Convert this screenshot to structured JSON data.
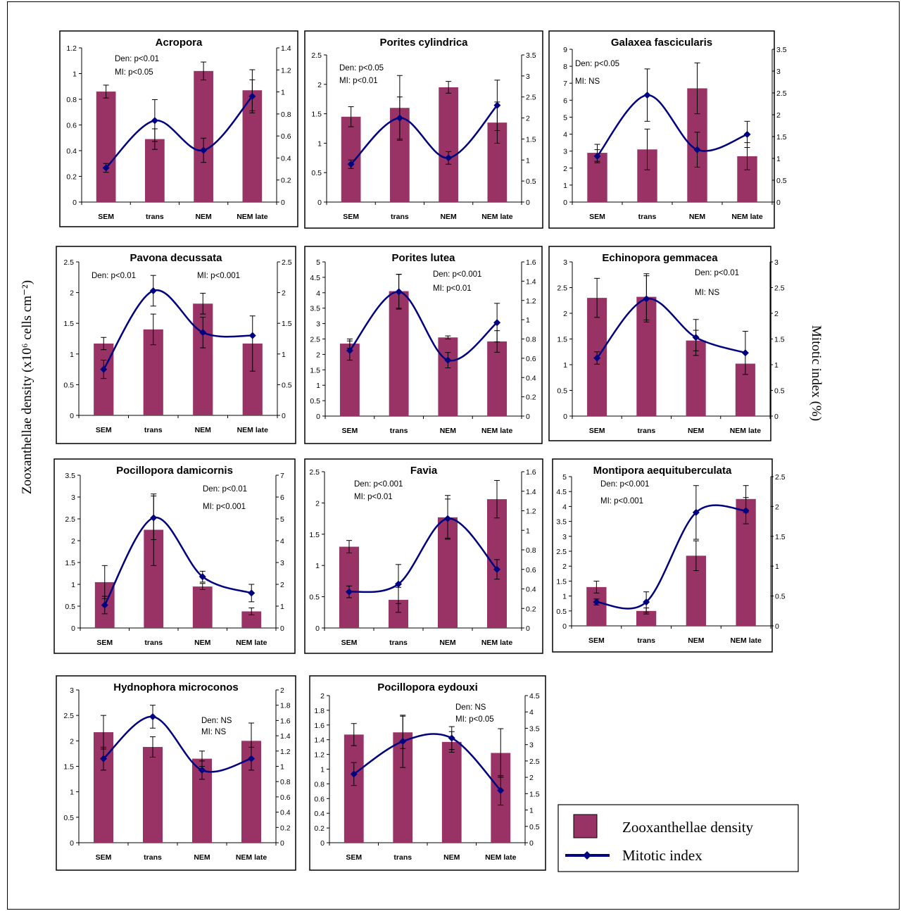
{
  "figure": {
    "left_axis_label": "Zooxanthellae density (x10⁶ cells cm⁻²)",
    "right_axis_label": "Mitotic index (%)",
    "legend": {
      "density_label": "Zooxanthellae density",
      "mitotic_label": "Mitotic index",
      "density_color": "#993366",
      "mitotic_color": "#000080"
    }
  },
  "chart_data": [
    {
      "type": "bar",
      "title": "Acropora",
      "categories": [
        "SEM",
        "trans",
        "NEM",
        "NEM late"
      ],
      "annotations": [
        "Den: p<0.01",
        "MI: p<0.05"
      ],
      "left_axis": {
        "min": 0,
        "max": 1.2,
        "step": 0.2,
        "ticks": [
          "0",
          "0.2",
          "0.4",
          "0.6",
          "0.8",
          "1",
          "1.2"
        ]
      },
      "right_axis": {
        "min": 0,
        "max": 1.4,
        "step": 0.2,
        "ticks": [
          "0",
          "0.2",
          "0.4",
          "0.6",
          "0.8",
          "1",
          "1.2",
          "1.4"
        ]
      },
      "series": [
        {
          "name": "Zooxanthellae density",
          "axis": "left",
          "values": [
            0.86,
            0.49,
            1.02,
            0.87
          ],
          "error": [
            0.05,
            0.08,
            0.07,
            0.16
          ]
        },
        {
          "name": "Mitotic index",
          "axis": "right",
          "values": [
            0.31,
            0.74,
            0.47,
            0.96
          ],
          "error": [
            0.04,
            0.19,
            0.11,
            0.15
          ]
        }
      ]
    },
    {
      "type": "bar",
      "title": "Porites cylindrica",
      "categories": [
        "SEM",
        "trans",
        "NEM",
        "NEM late"
      ],
      "annotations": [
        "Den: p<0.05",
        "MI: p<0.01"
      ],
      "left_axis": {
        "min": 0,
        "max": 2.5,
        "step": 0.5,
        "ticks": [
          "0",
          "0.5",
          "1",
          "1.5",
          "2",
          "2.5"
        ]
      },
      "right_axis": {
        "min": 0,
        "max": 3.5,
        "step": 0.5,
        "ticks": [
          "0",
          "0.5",
          "1",
          "1.5",
          "2",
          "2.5",
          "3",
          "3.5"
        ]
      },
      "series": [
        {
          "name": "Zooxanthellae density",
          "axis": "left",
          "values": [
            1.45,
            1.6,
            1.95,
            1.35
          ],
          "error": [
            0.17,
            0.55,
            0.1,
            0.35
          ]
        },
        {
          "name": "Mitotic index",
          "axis": "right",
          "values": [
            0.9,
            2.0,
            1.05,
            2.3
          ],
          "error": [
            0.1,
            0.5,
            0.15,
            0.6
          ]
        }
      ]
    },
    {
      "type": "bar",
      "title": "Galaxea fascicularis",
      "categories": [
        "SEM",
        "trans",
        "NEM",
        "NEM late"
      ],
      "annotations": [
        "Den: p<0.05",
        "MI: NS"
      ],
      "left_axis": {
        "min": 0,
        "max": 9,
        "step": 1,
        "ticks": [
          "0",
          "1",
          "2",
          "3",
          "4",
          "5",
          "6",
          "7",
          "8",
          "9"
        ]
      },
      "right_axis": {
        "min": 0,
        "max": 3.5,
        "step": 0.5,
        "ticks": [
          "0",
          "0.5",
          "1",
          "1.5",
          "2",
          "2.5",
          "3",
          "3.5"
        ]
      },
      "series": [
        {
          "name": "Zooxanthellae density",
          "axis": "left",
          "values": [
            2.9,
            3.1,
            6.7,
            2.7
          ],
          "error": [
            0.5,
            1.2,
            1.5,
            0.8
          ]
        },
        {
          "name": "Mitotic index",
          "axis": "right",
          "values": [
            1.05,
            2.45,
            1.2,
            1.55
          ],
          "error": [
            0.15,
            0.6,
            0.4,
            0.3
          ]
        }
      ]
    },
    {
      "type": "bar",
      "title": "Pavona decussata",
      "categories": [
        "SEM",
        "trans",
        "NEM",
        "NEM late"
      ],
      "annotations": [
        "Den: p<0.01",
        "MI: p<0.001"
      ],
      "left_axis": {
        "min": 0,
        "max": 2.5,
        "step": 0.5,
        "ticks": [
          "0",
          "0.5",
          "1",
          "1.5",
          "2",
          "2.5"
        ]
      },
      "right_axis": {
        "min": 0,
        "max": 2.5,
        "step": 0.5,
        "ticks": [
          "0",
          "0.5",
          "1",
          "1.5",
          "2",
          "2.5"
        ]
      },
      "series": [
        {
          "name": "Zooxanthellae density",
          "axis": "left",
          "values": [
            1.17,
            1.4,
            1.82,
            1.17
          ],
          "error": [
            0.1,
            0.25,
            0.17,
            0.45
          ]
        },
        {
          "name": "Mitotic index",
          "axis": "right",
          "values": [
            0.75,
            2.03,
            1.35,
            1.3
          ],
          "error": [
            0.15,
            0.25,
            0.25,
            0
          ]
        }
      ]
    },
    {
      "type": "bar",
      "title": "Porites lutea",
      "categories": [
        "SEM",
        "trans",
        "NEM",
        "NEM late"
      ],
      "annotations": [
        "Den: p<0.001",
        "MI: p<0.01"
      ],
      "left_axis": {
        "min": 0,
        "max": 5,
        "step": 0.5,
        "ticks": [
          "0",
          "0.5",
          "1",
          "1.5",
          "2",
          "2.5",
          "3",
          "3.5",
          "4",
          "4.5",
          "5"
        ]
      },
      "right_axis": {
        "min": 0,
        "max": 1.6,
        "step": 0.2,
        "ticks": [
          "0",
          "0.2",
          "0.4",
          "0.6",
          "0.8",
          "1",
          "1.2",
          "1.4",
          "1.6"
        ]
      },
      "series": [
        {
          "name": "Zooxanthellae density",
          "axis": "left",
          "values": [
            2.35,
            4.05,
            2.55,
            2.42
          ],
          "error": [
            0.15,
            0.55,
            0.05,
            0.35
          ]
        },
        {
          "name": "Mitotic index",
          "axis": "right",
          "values": [
            0.68,
            1.29,
            0.58,
            0.97
          ],
          "error": [
            0.1,
            0.18,
            0.08,
            0.2
          ]
        }
      ]
    },
    {
      "type": "bar",
      "title": "Echinopora gemmacea",
      "categories": [
        "SEM",
        "trans",
        "NEM",
        "NEM late"
      ],
      "annotations": [
        "Den: p<0.01",
        "MI: NS"
      ],
      "left_axis": {
        "min": 0,
        "max": 3,
        "step": 0.5,
        "ticks": [
          "0",
          "0.5",
          "1",
          "1.5",
          "2",
          "2.5",
          "3"
        ]
      },
      "right_axis": {
        "min": 0,
        "max": 3,
        "step": 0.5,
        "ticks": [
          "0",
          "0.5",
          "1",
          "1.5",
          "2",
          "2.5",
          "3"
        ]
      },
      "series": [
        {
          "name": "Zooxanthellae density",
          "axis": "left",
          "values": [
            2.3,
            2.32,
            1.47,
            1.02
          ],
          "error": [
            0.38,
            0.45,
            0.2,
            0
          ]
        },
        {
          "name": "Mitotic index",
          "axis": "right",
          "values": [
            1.13,
            2.28,
            1.53,
            1.23
          ],
          "error": [
            0.12,
            0.45,
            0.35,
            0.42
          ]
        }
      ]
    },
    {
      "type": "bar",
      "title": "Pocillopora damicornis",
      "categories": [
        "SEM",
        "trans",
        "NEM",
        "NEM late"
      ],
      "annotations": [
        "Den: p<0.01",
        "MI: p<0.001"
      ],
      "left_axis": {
        "min": 0,
        "max": 3.5,
        "step": 0.5,
        "ticks": [
          "0",
          "0.5",
          "1",
          "1.5",
          "2",
          "2.5",
          "3",
          "3.5"
        ]
      },
      "right_axis": {
        "min": 0,
        "max": 7,
        "step": 1,
        "ticks": [
          "0",
          "1",
          "2",
          "3",
          "4",
          "5",
          "6",
          "7"
        ]
      },
      "series": [
        {
          "name": "Zooxanthellae density",
          "axis": "left",
          "values": [
            1.05,
            2.25,
            0.95,
            0.38
          ],
          "error": [
            0.38,
            0.82,
            0.07,
            0.08
          ]
        },
        {
          "name": "Mitotic index",
          "axis": "right",
          "values": [
            1.05,
            5.05,
            2.35,
            1.6
          ],
          "error": [
            0.4,
            1.0,
            0.25,
            0.4
          ]
        }
      ]
    },
    {
      "type": "bar",
      "title": "Favia",
      "categories": [
        "SEM",
        "trans",
        "NEM",
        "NEM late"
      ],
      "annotations": [
        "Den: p<0.001",
        "MI: p<0.01"
      ],
      "left_axis": {
        "min": 0,
        "max": 2.5,
        "step": 0.5,
        "ticks": [
          "0",
          "0.5",
          "1",
          "1.5",
          "2",
          "2.5"
        ]
      },
      "right_axis": {
        "min": 0,
        "max": 1.6,
        "step": 0.2,
        "ticks": [
          "0",
          "0.2",
          "0.4",
          "0.6",
          "0.8",
          "1",
          "1.2",
          "1.4",
          "1.6"
        ]
      },
      "series": [
        {
          "name": "Zooxanthellae density",
          "axis": "left",
          "values": [
            1.3,
            0.45,
            1.77,
            2.06
          ],
          "error": [
            0.1,
            0.2,
            0.35,
            0.3
          ]
        },
        {
          "name": "Mitotic index",
          "axis": "right",
          "values": [
            0.37,
            0.45,
            1.12,
            0.6
          ],
          "error": [
            0.06,
            0.2,
            0.2,
            0.1
          ]
        }
      ]
    },
    {
      "type": "bar",
      "title": "Montipora aequituberculata",
      "categories": [
        "SEM",
        "trans",
        "NEM",
        "NEM late"
      ],
      "annotations": [
        "Den: p<0.001",
        "MI: p<0.001"
      ],
      "left_axis": {
        "min": 0,
        "max": 5,
        "step": 0.5,
        "ticks": [
          "0",
          "0.5",
          "1",
          "1.5",
          "2",
          "2.5",
          "3",
          "3.5",
          "4",
          "4.5",
          "5"
        ]
      },
      "right_axis": {
        "min": 0,
        "max": 2.5,
        "step": 0.5,
        "ticks": [
          "0",
          "0.5",
          "1",
          "1.5",
          "2",
          "2.5"
        ]
      },
      "series": [
        {
          "name": "Zooxanthellae density",
          "axis": "left",
          "values": [
            1.3,
            0.5,
            2.35,
            4.25
          ],
          "error": [
            0.2,
            0.1,
            0.5,
            0.45
          ]
        },
        {
          "name": "Mitotic index",
          "axis": "right",
          "values": [
            0.4,
            0.4,
            1.9,
            1.93
          ],
          "error": [
            0.05,
            0.17,
            0.45,
            0.22
          ]
        }
      ]
    },
    {
      "type": "bar",
      "title": "Hydnophora microconos",
      "categories": [
        "SEM",
        "trans",
        "NEM",
        "NEM late"
      ],
      "annotations": [
        "Den: NS",
        "MI: NS"
      ],
      "left_axis": {
        "min": 0,
        "max": 3,
        "step": 0.5,
        "ticks": [
          "0",
          "0.5",
          "1",
          "1.5",
          "2",
          "2.5",
          "3"
        ]
      },
      "right_axis": {
        "min": 0,
        "max": 2,
        "step": 0.2,
        "ticks": [
          "0",
          "0.2",
          "0.4",
          "0.6",
          "0.8",
          "1",
          "1.2",
          "1.4",
          "1.6",
          "1.8",
          "2"
        ]
      },
      "series": [
        {
          "name": "Zooxanthellae density",
          "axis": "left",
          "values": [
            2.17,
            1.88,
            1.65,
            2.0
          ],
          "error": [
            0.33,
            0.2,
            0.15,
            0.35
          ]
        },
        {
          "name": "Mitotic index",
          "axis": "right",
          "values": [
            1.1,
            1.65,
            0.95,
            1.1
          ],
          "error": [
            0.15,
            0.15,
            0.12,
            0.15
          ]
        }
      ]
    },
    {
      "type": "bar",
      "title": "Pocillopora eydouxi",
      "categories": [
        "SEM",
        "trans",
        "NEM",
        "NEM late"
      ],
      "annotations": [
        "Den: NS",
        "MI: p<0.05"
      ],
      "left_axis": {
        "min": 0,
        "max": 2,
        "step": 0.2,
        "ticks": [
          "0",
          "0.2",
          "0.4",
          "0.6",
          "0.8",
          "1",
          "1.2",
          "1.4",
          "1.6",
          "1.8",
          "2"
        ]
      },
      "right_axis": {
        "min": 0,
        "max": 4.5,
        "step": 0.5,
        "ticks": [
          "0",
          "0.5",
          "1",
          "1.5",
          "2",
          "2.5",
          "3",
          "3.5",
          "4",
          "4.5"
        ]
      },
      "series": [
        {
          "name": "Zooxanthellae density",
          "axis": "left",
          "values": [
            1.47,
            1.5,
            1.37,
            1.22
          ],
          "error": [
            0.15,
            0.22,
            0.14,
            0.33
          ]
        },
        {
          "name": "Mitotic index",
          "axis": "right",
          "values": [
            2.1,
            3.1,
            3.2,
            1.6
          ],
          "error": [
            0.35,
            0.8,
            0.35,
            0.45
          ]
        }
      ]
    }
  ]
}
